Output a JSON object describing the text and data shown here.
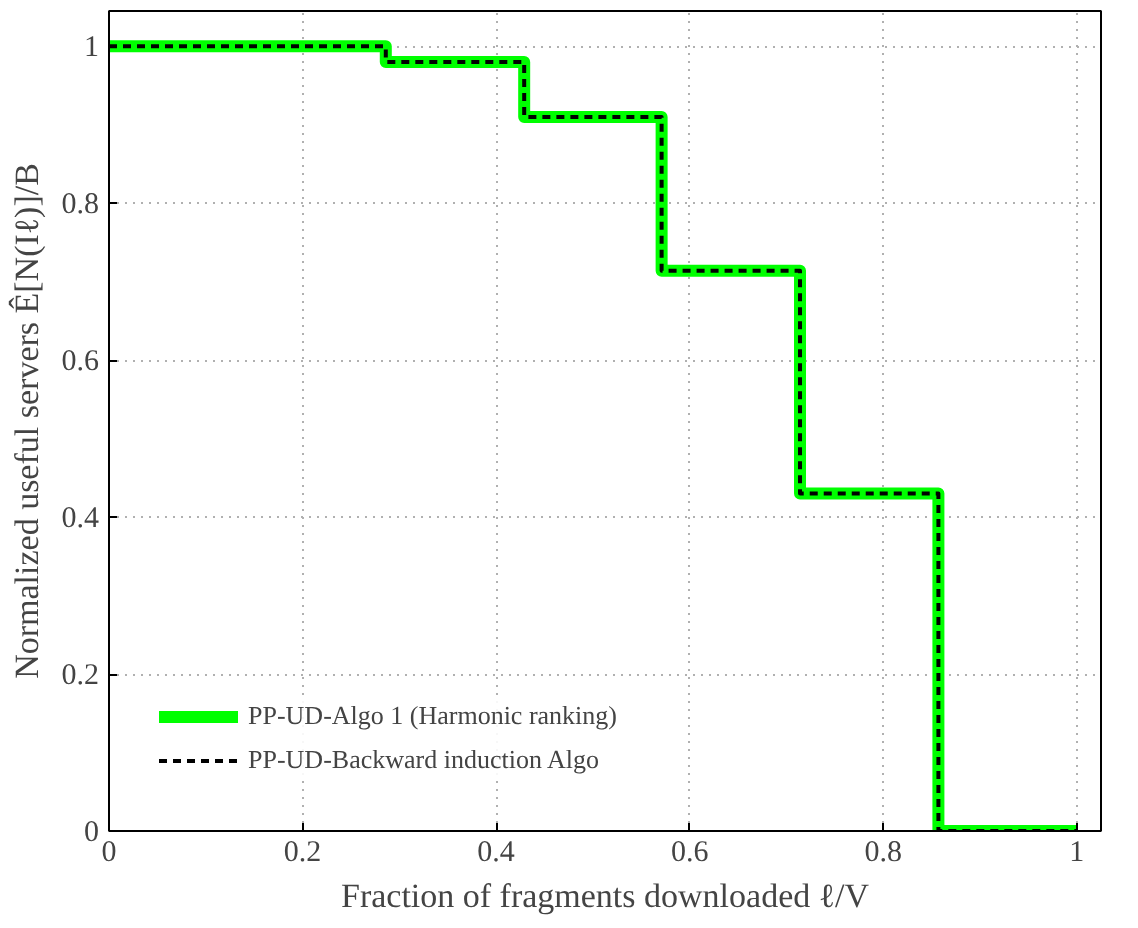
{
  "chart_data": {
    "type": "step",
    "xlabel": "Fraction of fragments downloaded ℓ/V",
    "ylabel": "Normalized useful servers Ê[N(Iℓ)]/B",
    "x": [
      0,
      0.286,
      0.429,
      0.571,
      0.714,
      0.857,
      1
    ],
    "series": [
      {
        "name": "PP-UD-Algo 1 (Harmonic ranking)",
        "color": "#00ff00",
        "line_style": "solid",
        "values": [
          1,
          0.98,
          0.91,
          0.714,
          0.43,
          0,
          0
        ]
      },
      {
        "name": "PP-UD-Backward induction Algo",
        "color": "#000000",
        "line_style": "dashed",
        "values": [
          1,
          0.98,
          0.91,
          0.714,
          0.43,
          0,
          0
        ]
      }
    ],
    "xlim": [
      0,
      1.025
    ],
    "ylim": [
      0,
      1.045
    ],
    "xticks": [
      0,
      0.2,
      0.4,
      0.6,
      0.8,
      1
    ],
    "yticks": [
      0,
      0.2,
      0.4,
      0.6,
      0.8,
      1
    ],
    "grid": true,
    "legend": "bottom left"
  }
}
